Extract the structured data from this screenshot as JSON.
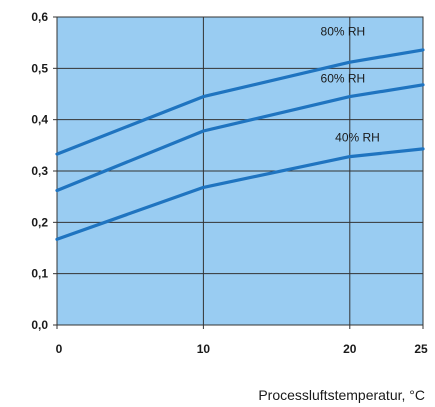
{
  "chart_data": {
    "type": "line",
    "xlabel": "Processluftstemperatur, °C",
    "ylabel": "",
    "x": [
      0,
      10,
      20,
      25
    ],
    "xlim": [
      0,
      25
    ],
    "ylim": [
      0,
      0.6
    ],
    "x_ticks": [
      0,
      10,
      20,
      25
    ],
    "x_tick_labels": [
      "0",
      "10",
      "20",
      "25"
    ],
    "y_ticks": [
      0,
      0.1,
      0.2,
      0.3,
      0.4,
      0.5,
      0.6
    ],
    "y_tick_labels": [
      "0,0",
      "0,1",
      "0,2",
      "0,3",
      "0,4",
      "0,5",
      "0,6"
    ],
    "grid": true,
    "legend": "none",
    "colors": {
      "plot_background": "#99ccf2",
      "series_line": "#1f74c0",
      "grid": "#333333"
    },
    "series": [
      {
        "name": "80% RH",
        "values": [
          0.333,
          0.445,
          0.512,
          0.536
        ]
      },
      {
        "name": "60% RH",
        "values": [
          0.262,
          0.378,
          0.445,
          0.468
        ]
      },
      {
        "name": "40% RH",
        "values": [
          0.167,
          0.268,
          0.328,
          0.343
        ]
      }
    ]
  }
}
